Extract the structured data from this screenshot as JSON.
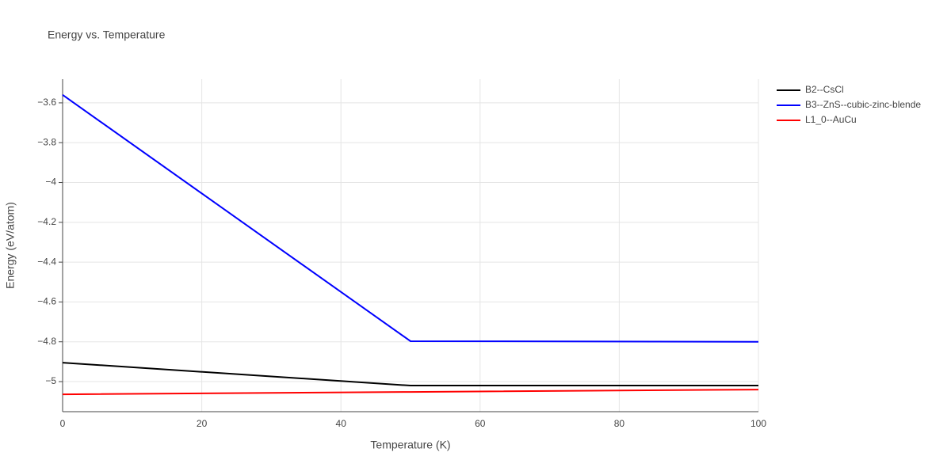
{
  "chart_data": {
    "type": "line",
    "title": "Energy vs. Temperature",
    "x_label": "Temperature (K)",
    "y_label": "Energy (eV/atom)",
    "x": [
      0,
      50,
      100
    ],
    "series": [
      {
        "name": "B2--CsCl",
        "color": "#000000",
        "values": [
          -4.905,
          -5.02,
          -5.02
        ]
      },
      {
        "name": "B3--ZnS--cubic-zinc-blende",
        "color": "#0000ff",
        "values": [
          -3.56,
          -4.797,
          -4.8
        ]
      },
      {
        "name": "L1_0--AuCu",
        "color": "#ff0000",
        "values": [
          -5.064,
          -5.052,
          -5.04
        ]
      }
    ],
    "xlim": [
      0,
      100
    ],
    "xticks": [
      0,
      20,
      40,
      60,
      80,
      100
    ],
    "ylim": [
      -5.151,
      -3.481
    ],
    "yticks": [
      {
        "value": -5,
        "label": "−5"
      },
      {
        "value": -4.8,
        "label": "−4.8"
      },
      {
        "value": -4.6,
        "label": "−4.6"
      },
      {
        "value": -4.4,
        "label": "−4.4"
      },
      {
        "value": -4.2,
        "label": "−4.2"
      },
      {
        "value": -4,
        "label": "−4"
      },
      {
        "value": -3.8,
        "label": "−3.8"
      },
      {
        "value": -3.6,
        "label": "−3.6"
      }
    ],
    "grid": true,
    "legend": "right"
  }
}
